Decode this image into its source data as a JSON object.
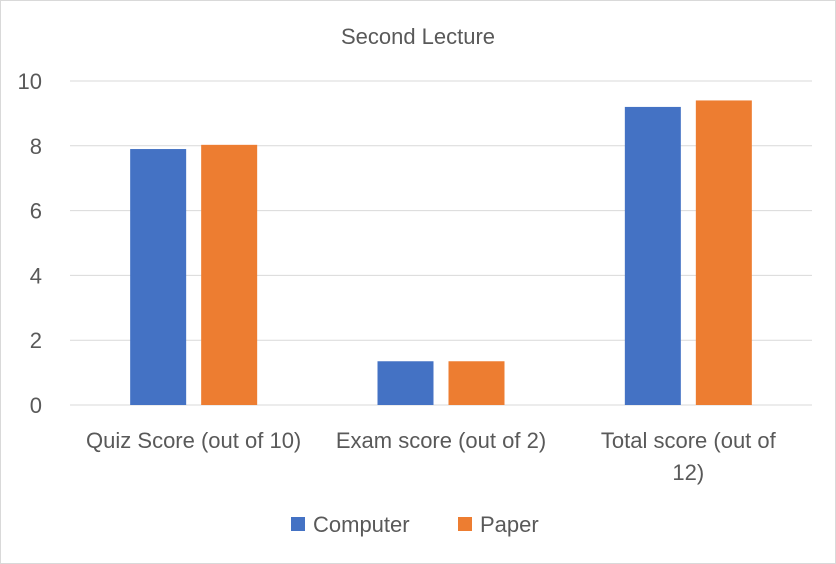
{
  "chart_data": {
    "type": "bar",
    "title": "Second Lecture",
    "categories": [
      "Quiz Score (out of 10)",
      "Exam score (out of 2)",
      "Total score (out of 12)"
    ],
    "category_lines": [
      [
        "Quiz Score (out of 10)"
      ],
      [
        "Exam score (out of 2)"
      ],
      [
        "Total score (out of",
        "12)"
      ]
    ],
    "series": [
      {
        "name": "Computer",
        "color": "#4472c4",
        "values": [
          7.9,
          1.35,
          9.2
        ]
      },
      {
        "name": "Paper",
        "color": "#ed7d31",
        "values": [
          8.03,
          1.35,
          9.4
        ]
      }
    ],
    "ylim": [
      0,
      10
    ],
    "yticks": [
      "0",
      "2",
      "4",
      "6",
      "8",
      "10"
    ],
    "grid": true,
    "gridline_color": "#d9d9d9",
    "legend_position": "bottom"
  }
}
